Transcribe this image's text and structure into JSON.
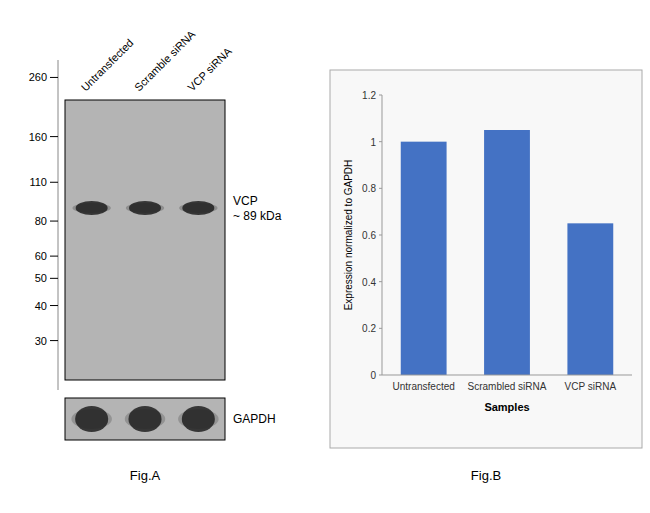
{
  "chart_data": [
    {
      "type": "blot",
      "title": "Fig.A",
      "categories": [
        "Untransfected",
        "Scramble siRNA",
        "VCP siRNA"
      ],
      "annotations": [
        "VCP\n~ 89 kDa",
        "GAPDH"
      ],
      "log": "y",
      "ylim": [
        20,
        300
      ],
      "yticks": [
        260,
        160,
        110,
        80,
        60,
        50,
        40,
        30
      ]
    },
    {
      "type": "bar",
      "title": "Fig.B",
      "categories": [
        "Untransfected",
        "Scrambled siRNA",
        "VCP siRNA"
      ],
      "values": [
        1.0,
        1.05,
        0.65
      ],
      "color": "#4472c4",
      "xlabel": "Samples",
      "ylabel": "Expression normalized to GAPDH",
      "ylim": [
        0,
        1.2
      ],
      "yticks": [
        0,
        0.2,
        0.4,
        0.6,
        0.8,
        1,
        1.2
      ],
      "grid": false
    }
  ]
}
